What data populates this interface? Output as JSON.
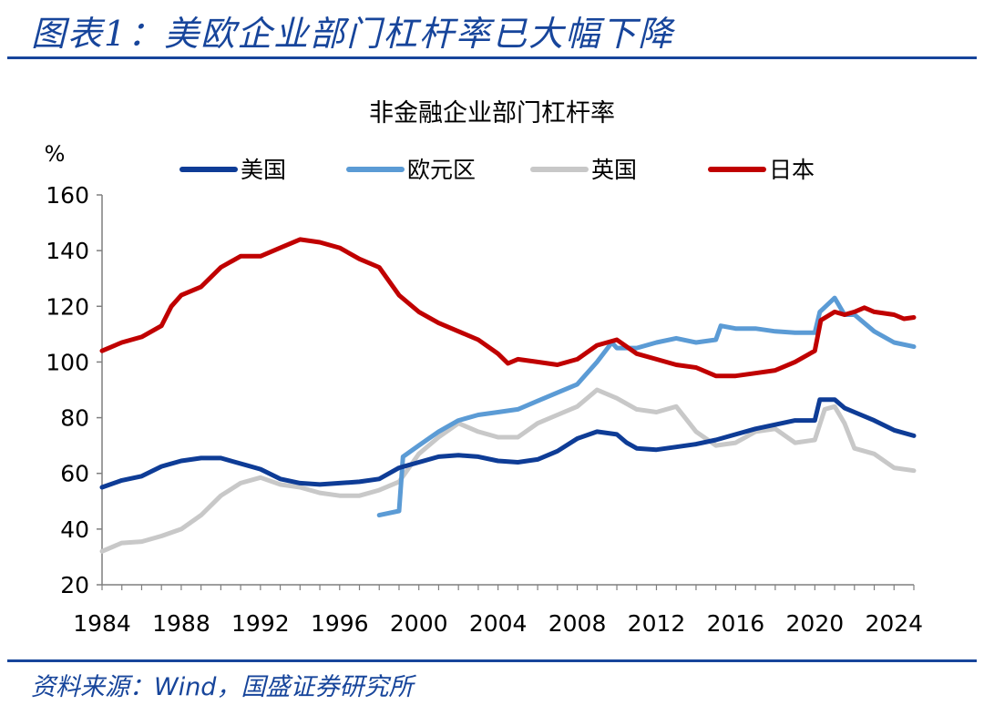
{
  "figure": {
    "title": "图表1：美欧企业部门杠杆率已大幅下降",
    "source": "资料来源：Wind，国盛证券研究所"
  },
  "colors": {
    "brand": "#17459b",
    "us": "#0e3c96",
    "eurozone": "#5b9bd5",
    "uk": "#c8c8c8",
    "japan": "#c00000"
  },
  "chart_data": {
    "type": "line",
    "title": "非金融企业部门杠杆率",
    "ylabel": "%",
    "xlabel": "",
    "xlim": [
      1984,
      2025
    ],
    "ylim": [
      20,
      160
    ],
    "yticks": [
      20,
      40,
      60,
      80,
      100,
      120,
      140,
      160
    ],
    "xticks": [
      1984,
      1988,
      1992,
      1996,
      2000,
      2004,
      2008,
      2012,
      2016,
      2020,
      2024
    ],
    "grid": false,
    "legend": "top",
    "series": [
      {
        "name": "美国",
        "color": "#0e3c96",
        "points": [
          [
            1984,
            55
          ],
          [
            1985,
            57.5
          ],
          [
            1986,
            59
          ],
          [
            1987,
            62.5
          ],
          [
            1988,
            64.5
          ],
          [
            1989,
            65.5
          ],
          [
            1990,
            65.5
          ],
          [
            1991,
            63.5
          ],
          [
            1992,
            61.5
          ],
          [
            1993,
            58
          ],
          [
            1994,
            56.5
          ],
          [
            1995,
            56
          ],
          [
            1996,
            56.5
          ],
          [
            1997,
            57
          ],
          [
            1998,
            58
          ],
          [
            1999,
            62
          ],
          [
            2000,
            64
          ],
          [
            2001,
            66
          ],
          [
            2002,
            66.5
          ],
          [
            2003,
            66
          ],
          [
            2004,
            64.5
          ],
          [
            2005,
            64
          ],
          [
            2006,
            65
          ],
          [
            2007,
            68
          ],
          [
            2008,
            72.5
          ],
          [
            2009,
            75
          ],
          [
            2010,
            74
          ],
          [
            2010.5,
            71
          ],
          [
            2011,
            69
          ],
          [
            2012,
            68.5
          ],
          [
            2013,
            69.5
          ],
          [
            2014,
            70.5
          ],
          [
            2015,
            72
          ],
          [
            2016,
            74
          ],
          [
            2017,
            76
          ],
          [
            2018,
            77.5
          ],
          [
            2019,
            79
          ],
          [
            2020,
            79
          ],
          [
            2020.25,
            86.5
          ],
          [
            2021,
            86.5
          ],
          [
            2021.5,
            83.5
          ],
          [
            2022,
            82
          ],
          [
            2023,
            79
          ],
          [
            2024,
            75.5
          ],
          [
            2025,
            73.5
          ]
        ]
      },
      {
        "name": "欧元区",
        "color": "#5b9bd5",
        "points": [
          [
            1998,
            45
          ],
          [
            1999,
            46.5
          ],
          [
            1999.2,
            66
          ],
          [
            2000,
            70
          ],
          [
            2001,
            75
          ],
          [
            2002,
            79
          ],
          [
            2003,
            81
          ],
          [
            2004,
            82
          ],
          [
            2005,
            83
          ],
          [
            2006,
            86
          ],
          [
            2007,
            89
          ],
          [
            2008,
            92
          ],
          [
            2009,
            100
          ],
          [
            2009.75,
            107
          ],
          [
            2010,
            105
          ],
          [
            2011,
            105
          ],
          [
            2012,
            107
          ],
          [
            2013,
            108.5
          ],
          [
            2014,
            107
          ],
          [
            2015,
            108
          ],
          [
            2015.25,
            113
          ],
          [
            2016,
            112
          ],
          [
            2017,
            112
          ],
          [
            2018,
            111
          ],
          [
            2019,
            110.5
          ],
          [
            2020,
            110.5
          ],
          [
            2020.25,
            118
          ],
          [
            2021,
            123
          ],
          [
            2021.5,
            117
          ],
          [
            2022,
            117
          ],
          [
            2023,
            111
          ],
          [
            2024,
            107
          ],
          [
            2025,
            105.5
          ]
        ]
      },
      {
        "name": "英国",
        "color": "#c8c8c8",
        "points": [
          [
            1984,
            32
          ],
          [
            1985,
            35
          ],
          [
            1986,
            35.5
          ],
          [
            1987,
            37.5
          ],
          [
            1988,
            40
          ],
          [
            1989,
            45
          ],
          [
            1990,
            52
          ],
          [
            1991,
            56.5
          ],
          [
            1992,
            58.5
          ],
          [
            1993,
            56
          ],
          [
            1994,
            55
          ],
          [
            1995,
            53
          ],
          [
            1996,
            52
          ],
          [
            1997,
            52
          ],
          [
            1998,
            54
          ],
          [
            1999,
            57
          ],
          [
            2000,
            67
          ],
          [
            2001,
            73
          ],
          [
            2002,
            78
          ],
          [
            2003,
            75
          ],
          [
            2004,
            73
          ],
          [
            2005,
            73
          ],
          [
            2006,
            78
          ],
          [
            2007,
            81
          ],
          [
            2008,
            84
          ],
          [
            2009,
            90
          ],
          [
            2010,
            87
          ],
          [
            2011,
            83
          ],
          [
            2012,
            82
          ],
          [
            2013,
            84
          ],
          [
            2014,
            75
          ],
          [
            2015,
            70
          ],
          [
            2016,
            71
          ],
          [
            2017,
            75
          ],
          [
            2018,
            76
          ],
          [
            2019,
            71
          ],
          [
            2020,
            72
          ],
          [
            2020.5,
            83
          ],
          [
            2021,
            84
          ],
          [
            2021.5,
            78
          ],
          [
            2022,
            69
          ],
          [
            2023,
            67
          ],
          [
            2024,
            62
          ],
          [
            2025,
            61
          ]
        ]
      },
      {
        "name": "日本",
        "color": "#c00000",
        "points": [
          [
            1984,
            104
          ],
          [
            1985,
            107
          ],
          [
            1986,
            109
          ],
          [
            1987,
            113
          ],
          [
            1987.5,
            120
          ],
          [
            1988,
            124
          ],
          [
            1989,
            127
          ],
          [
            1990,
            134
          ],
          [
            1991,
            138
          ],
          [
            1992,
            138
          ],
          [
            1993,
            141
          ],
          [
            1994,
            144
          ],
          [
            1995,
            143
          ],
          [
            1996,
            141
          ],
          [
            1997,
            137
          ],
          [
            1998,
            134
          ],
          [
            1999,
            124
          ],
          [
            2000,
            118
          ],
          [
            2001,
            114
          ],
          [
            2002,
            111
          ],
          [
            2003,
            108
          ],
          [
            2004,
            103
          ],
          [
            2004.5,
            99.5
          ],
          [
            2005,
            101
          ],
          [
            2006,
            100
          ],
          [
            2007,
            99
          ],
          [
            2008,
            101
          ],
          [
            2009,
            106
          ],
          [
            2010,
            108
          ],
          [
            2011,
            103
          ],
          [
            2012,
            101
          ],
          [
            2013,
            99
          ],
          [
            2014,
            98
          ],
          [
            2015,
            95
          ],
          [
            2016,
            95
          ],
          [
            2017,
            96
          ],
          [
            2018,
            97
          ],
          [
            2019,
            100
          ],
          [
            2020,
            104
          ],
          [
            2020.3,
            115
          ],
          [
            2021,
            118
          ],
          [
            2021.5,
            117
          ],
          [
            2022,
            118
          ],
          [
            2022.5,
            119.5
          ],
          [
            2023,
            118
          ],
          [
            2024,
            117
          ],
          [
            2024.5,
            115.5
          ],
          [
            2025,
            116
          ]
        ]
      }
    ]
  }
}
